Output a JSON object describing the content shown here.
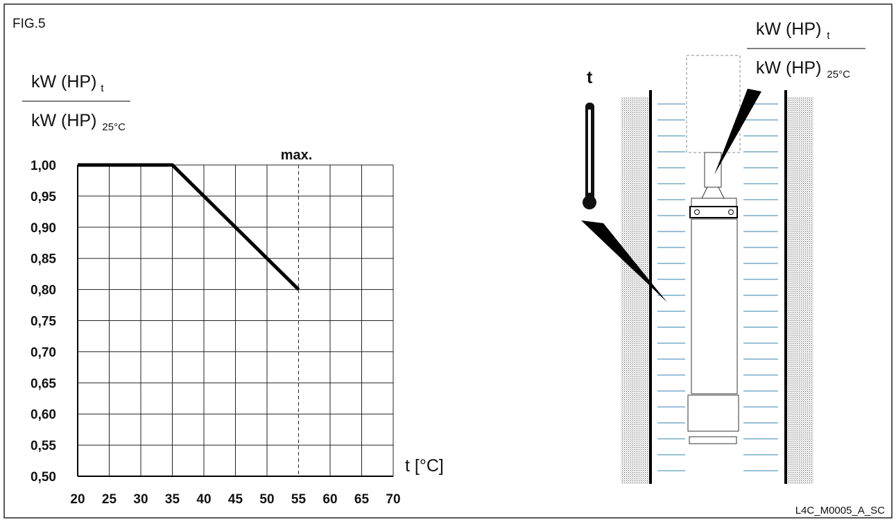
{
  "figure_label": "FIG.5",
  "chart_data": {
    "type": "line",
    "ylabel": {
      "numerator": "kW (HP)",
      "numerator_sub": "t",
      "denominator": "kW (HP)",
      "denominator_sub": "25°C"
    },
    "xlabel": "t [°C]",
    "x": [
      20,
      35,
      55
    ],
    "series": [
      {
        "color": "#000000",
        "values": [
          1.0,
          1.0,
          0.8
        ]
      }
    ],
    "annotations": [
      {
        "x": 55,
        "text": "max."
      }
    ],
    "xlim": [
      20,
      70
    ],
    "xticks": [
      20,
      25,
      30,
      35,
      40,
      45,
      50,
      55,
      60,
      65,
      70
    ],
    "ylim": [
      0.5,
      1.0
    ],
    "yticks": [
      {
        "value": 0.5,
        "label": "0,50"
      },
      {
        "value": 0.55,
        "label": "0,55"
      },
      {
        "value": 0.6,
        "label": "0,60"
      },
      {
        "value": 0.65,
        "label": "0,65"
      },
      {
        "value": 0.7,
        "label": "0,70"
      },
      {
        "value": 0.75,
        "label": "0,75"
      },
      {
        "value": 0.8,
        "label": "0,80"
      },
      {
        "value": 0.85,
        "label": "0,85"
      },
      {
        "value": 0.9,
        "label": "0,90"
      },
      {
        "value": 0.95,
        "label": "0,95"
      },
      {
        "value": 1.0,
        "label": "1,00"
      }
    ],
    "grid": true
  },
  "diagram": {
    "thermometer_label": "t",
    "ratio": {
      "numerator": "kW (HP)",
      "numerator_sub": "t",
      "denominator": "kW (HP)",
      "denominator_sub": "25°C"
    },
    "code": "L4C_M0005_A_SC"
  }
}
